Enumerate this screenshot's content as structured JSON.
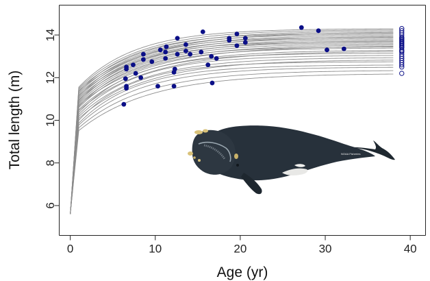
{
  "chart_data": {
    "type": "line",
    "xlabel": "Age (yr)",
    "ylabel": "Total length (m)",
    "xlim": [
      -1.3,
      41.8
    ],
    "ylim": [
      4.6,
      15.4
    ],
    "x_ticks": [
      "0",
      "10",
      "20",
      "30",
      "40"
    ],
    "y_ticks": [
      "6",
      "8",
      "10",
      "12",
      "14"
    ],
    "grid": false,
    "growth_curves": {
      "x_range": [
        0,
        38
      ],
      "birth_length": 5.6,
      "asymptotes": [
        12.2,
        12.35,
        12.5,
        12.6,
        12.75,
        12.85,
        12.95,
        13.05,
        13.15,
        13.25,
        13.3,
        13.4,
        13.45,
        13.5,
        13.55,
        13.6,
        13.65,
        13.7,
        13.75,
        13.8,
        13.85,
        13.9,
        13.95,
        14.0,
        14.05,
        14.1,
        14.15,
        14.2,
        14.25,
        14.3
      ],
      "color": "#8c8c8c"
    },
    "observed": {
      "marker": "filled-circle",
      "color": "#0b0f87",
      "points": [
        [
          6.3,
          10.75
        ],
        [
          6.6,
          11.5
        ],
        [
          6.6,
          11.6
        ],
        [
          6.5,
          11.95
        ],
        [
          6.6,
          12.4
        ],
        [
          6.6,
          12.5
        ],
        [
          7.4,
          12.6
        ],
        [
          7.7,
          12.2
        ],
        [
          8.3,
          12.0
        ],
        [
          8.6,
          12.85
        ],
        [
          8.6,
          13.1
        ],
        [
          9.6,
          12.75
        ],
        [
          10.3,
          11.6
        ],
        [
          10.6,
          13.3
        ],
        [
          11.2,
          12.9
        ],
        [
          11.2,
          13.2
        ],
        [
          11.3,
          13.45
        ],
        [
          12.2,
          11.6
        ],
        [
          12.2,
          12.25
        ],
        [
          12.3,
          12.4
        ],
        [
          12.6,
          13.1
        ],
        [
          12.6,
          13.85
        ],
        [
          13.6,
          13.25
        ],
        [
          13.6,
          13.55
        ],
        [
          14.1,
          13.1
        ],
        [
          15.6,
          14.15
        ],
        [
          15.4,
          13.2
        ],
        [
          16.2,
          12.6
        ],
        [
          16.6,
          13.0
        ],
        [
          16.7,
          11.75
        ],
        [
          17.2,
          12.9
        ],
        [
          18.7,
          13.75
        ],
        [
          18.7,
          13.85
        ],
        [
          19.6,
          13.5
        ],
        [
          19.6,
          14.05
        ],
        [
          20.6,
          13.85
        ],
        [
          20.6,
          13.65
        ],
        [
          27.2,
          14.35
        ],
        [
          29.2,
          14.2
        ],
        [
          30.2,
          13.3
        ],
        [
          32.2,
          13.35
        ]
      ],
      "open_marker": "open-circle",
      "open_x": 39.0,
      "open_y": [
        12.2,
        12.5,
        12.6,
        12.7,
        12.8,
        12.9,
        13.0,
        13.1,
        13.2,
        13.25,
        13.3,
        13.4,
        13.45,
        13.5,
        13.55,
        13.6,
        13.65,
        13.7,
        13.75,
        13.8,
        13.85,
        13.9,
        14.0,
        14.1,
        14.2,
        14.3
      ]
    }
  },
  "illustration": {
    "subject": "right-whale",
    "credit": "NOAA Fisheries"
  },
  "colors": {
    "curve": "#8c8c8c",
    "points": "#0b0f87",
    "axis": "#222222",
    "whale_body": "#27313b",
    "callosity": "#d9c27a"
  }
}
